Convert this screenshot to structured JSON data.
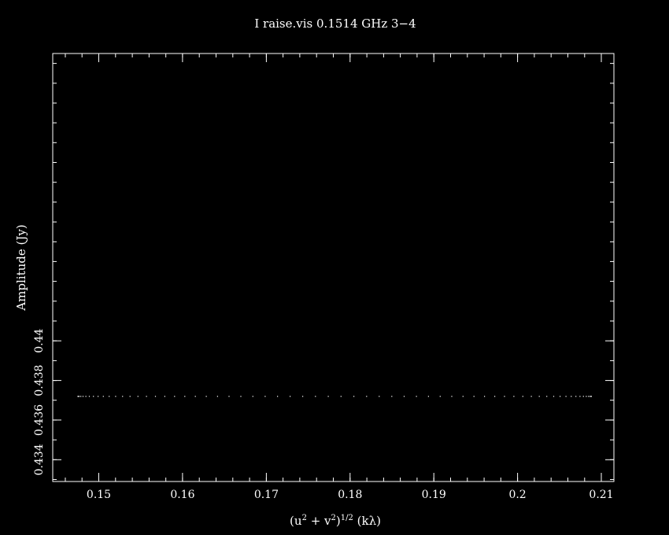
{
  "chart_data": {
    "type": "scatter",
    "title": "I raise.vis 0.1514 GHz   3−4",
    "xlabel": {
      "prefix": "(u",
      "sup1": "2",
      "middle": " + v",
      "sup2": "2",
      "close": ")",
      "sup3": "1/2",
      "suffix": " (kλ)"
    },
    "ylabel": "Amplitude (Jy)",
    "xlim": [
      0.1445,
      0.2115
    ],
    "ylim": [
      0.4329,
      0.4545
    ],
    "x_ticks": [
      0.15,
      0.16,
      0.17,
      0.18,
      0.19,
      0.2,
      0.21
    ],
    "x_tick_labels": [
      "0.15",
      "0.16",
      "0.17",
      "0.18",
      "0.19",
      "0.2",
      "0.21"
    ],
    "x_minor_step": 0.002,
    "y_ticks": [
      0.434,
      0.436,
      0.438,
      0.44
    ],
    "y_tick_labels": [
      "0.434",
      "0.436",
      "0.438",
      "0.44"
    ],
    "y_minor_step": 0.001,
    "grid": false,
    "colors": {
      "background": "#000000",
      "foreground": "#ffffff"
    },
    "series": [
      {
        "x_start": 0.1475,
        "x_end": 0.2088,
        "y": 0.4372,
        "count": 64
      }
    ]
  }
}
